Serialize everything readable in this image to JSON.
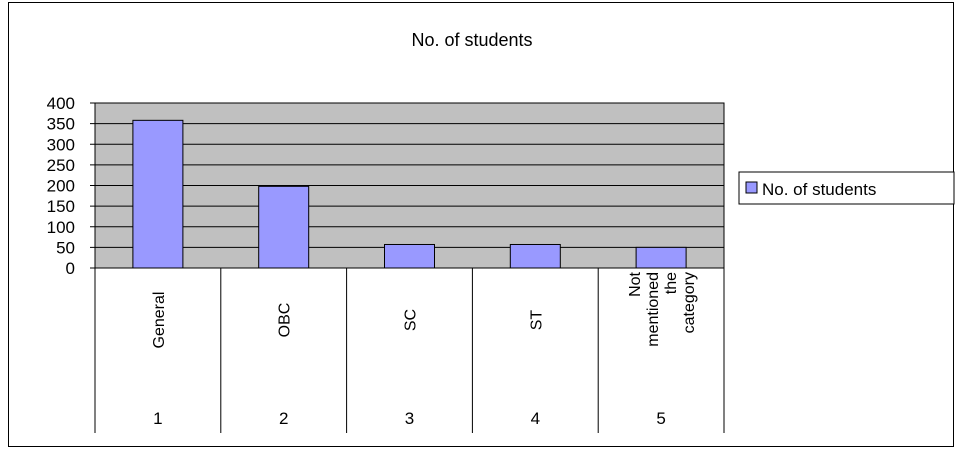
{
  "chart_data": {
    "type": "bar",
    "title": "No. of students",
    "categories": [
      "1",
      "2",
      "3",
      "4",
      "5"
    ],
    "category_labels": [
      "General",
      "OBC",
      "SC",
      "ST",
      "Not mentioned the category"
    ],
    "category_label_lines": [
      [
        "General"
      ],
      [
        "OBC"
      ],
      [
        "SC"
      ],
      [
        "ST"
      ],
      [
        "Not",
        "mentioned",
        "the",
        "category"
      ]
    ],
    "series": [
      {
        "name": "No. of students",
        "values": [
          358,
          198,
          57,
          57,
          50
        ],
        "color": "#9999ff"
      }
    ],
    "ylim": [
      0,
      400
    ],
    "yticks": [
      "0",
      "50",
      "100",
      "150",
      "200",
      "250",
      "300",
      "350",
      "400"
    ],
    "grid": true,
    "plot_background": "#c0c0c0",
    "legend_position": "right"
  }
}
